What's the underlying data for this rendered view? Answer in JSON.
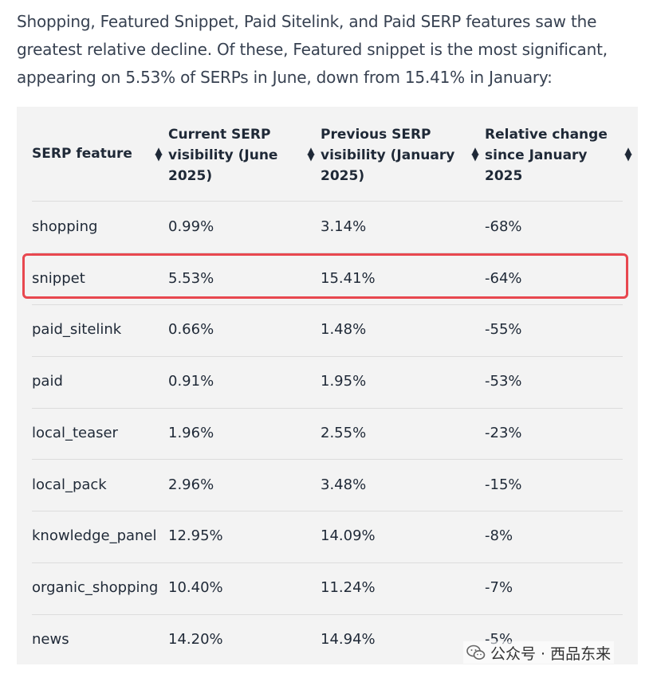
{
  "intro_text": "Shopping, Featured Snippet, Paid Sitelink, and Paid SERP features saw the greatest relative decline. Of these, Featured snippet is the most significant, appearing on 5.53% of SERPs in June, down from 15.41% in January:",
  "table": {
    "headers": [
      {
        "label": "SERP feature"
      },
      {
        "label": "Current SERP visibility (June 2025)"
      },
      {
        "label": "Previous SERP visibility (January 2025)"
      },
      {
        "label": "Relative change since January 2025"
      }
    ],
    "rows": [
      {
        "feature": "shopping",
        "current": "0.99%",
        "previous": "3.14%",
        "change": "-68%"
      },
      {
        "feature": "snippet",
        "current": "5.53%",
        "previous": "15.41%",
        "change": "-64%"
      },
      {
        "feature": "paid_sitelink",
        "current": "0.66%",
        "previous": "1.48%",
        "change": "-55%"
      },
      {
        "feature": "paid",
        "current": "0.91%",
        "previous": "1.95%",
        "change": "-53%"
      },
      {
        "feature": "local_teaser",
        "current": "1.96%",
        "previous": "2.55%",
        "change": "-23%"
      },
      {
        "feature": "local_pack",
        "current": "2.96%",
        "previous": "3.48%",
        "change": "-15%"
      },
      {
        "feature": "knowledge_panel",
        "current": "12.95%",
        "previous": "14.09%",
        "change": "-8%"
      },
      {
        "feature": "organic_shopping",
        "current": "10.40%",
        "previous": "11.24%",
        "change": "-7%"
      },
      {
        "feature": "news",
        "current": "14.20%",
        "previous": "14.94%",
        "change": "-5%"
      }
    ],
    "highlighted_row": "snippet",
    "highlight_color": "#e8474f"
  },
  "watermark": {
    "text": "公众号 · 西品东来",
    "icon": "wechat-icon"
  }
}
